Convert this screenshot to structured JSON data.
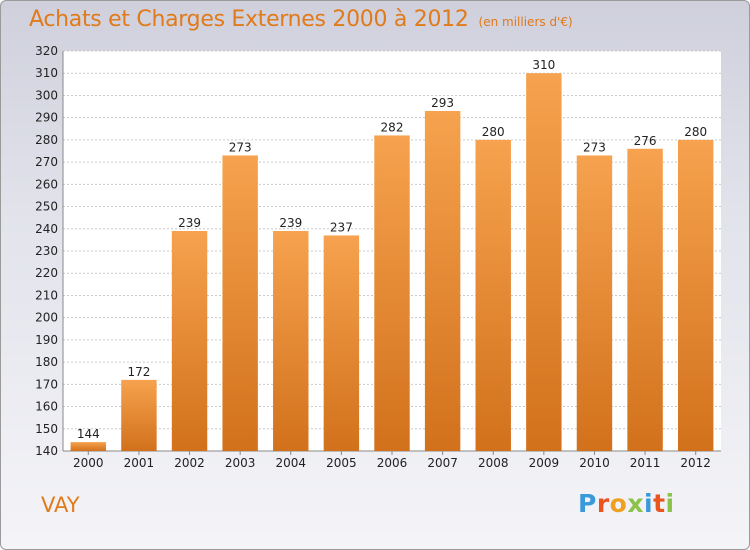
{
  "header": {
    "title": "Achats et Charges Externes 2000 à 2012",
    "unit": "(en milliers d'€)"
  },
  "footer": {
    "place": "VAY",
    "brand": "Proxiti",
    "brand_colors": [
      "#3a9ad9",
      "#e8551f",
      "#f0a020",
      "#8bc34a",
      "#3a9ad9",
      "#e8551f",
      "#8bc34a"
    ]
  },
  "colors": {
    "bar_top": "#f6a24e",
    "bar_bottom": "#d2711c",
    "accent": "#e07a1a"
  },
  "chart_data": {
    "type": "bar",
    "categories": [
      "2000",
      "2001",
      "2002",
      "2003",
      "2004",
      "2005",
      "2006",
      "2007",
      "2008",
      "2009",
      "2010",
      "2011",
      "2012"
    ],
    "values": [
      144,
      172,
      239,
      273,
      239,
      237,
      282,
      293,
      280,
      310,
      273,
      276,
      280
    ],
    "ylim": [
      140,
      320
    ],
    "yticks": [
      140,
      150,
      160,
      170,
      180,
      190,
      200,
      210,
      220,
      230,
      240,
      250,
      260,
      270,
      280,
      290,
      300,
      310,
      320
    ],
    "grid": true
  }
}
